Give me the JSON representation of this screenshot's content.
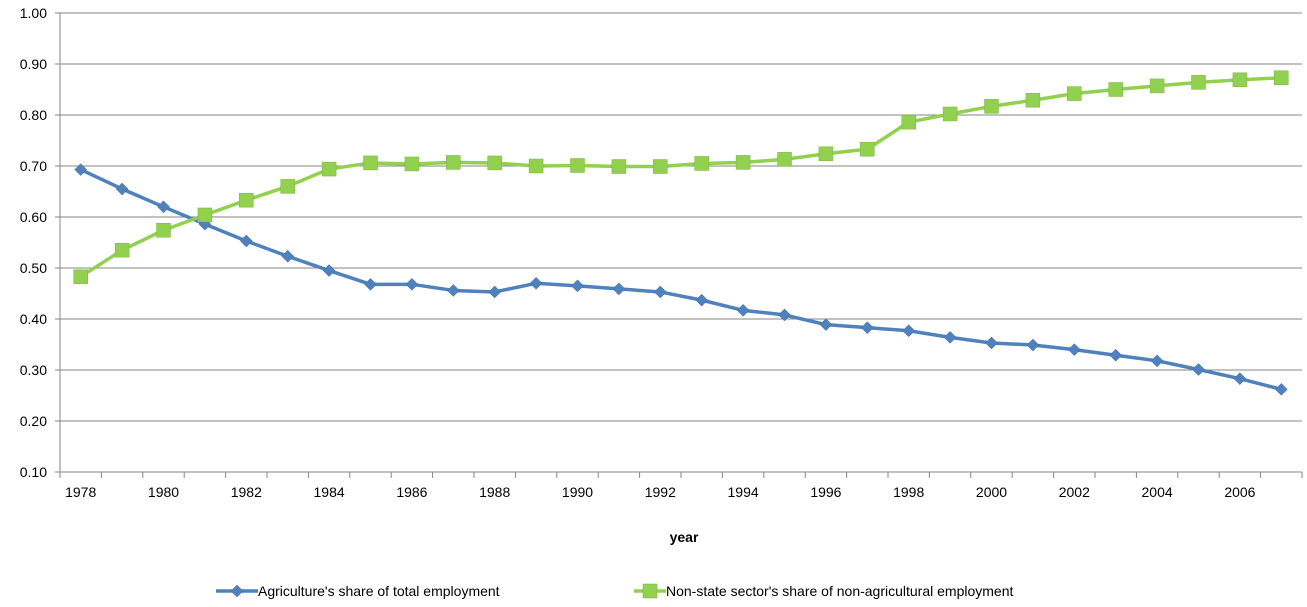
{
  "chart_data": {
    "type": "line",
    "title": "",
    "xlabel": "year",
    "ylabel": "",
    "ylim": [
      0.1,
      1.0
    ],
    "yticks": [
      "0.10",
      "0.20",
      "0.30",
      "0.40",
      "0.50",
      "0.60",
      "0.70",
      "0.80",
      "0.90",
      "1.00"
    ],
    "xtick_labels": [
      "1978",
      "1980",
      "1982",
      "1984",
      "1986",
      "1988",
      "1990",
      "1992",
      "1994",
      "1996",
      "1998",
      "2000",
      "2002",
      "2004",
      "2006"
    ],
    "grid": true,
    "legend_position": "bottom",
    "x": [
      1978,
      1979,
      1980,
      1981,
      1982,
      1983,
      1984,
      1985,
      1986,
      1987,
      1988,
      1989,
      1990,
      1991,
      1992,
      1993,
      1994,
      1995,
      1996,
      1997,
      1998,
      1999,
      2000,
      2001,
      2002,
      2003,
      2004,
      2005,
      2006,
      2007
    ],
    "series": [
      {
        "name": "Agriculture's share of total employment",
        "color": "#4f81bd",
        "marker": "diamond",
        "values": [
          0.693,
          0.655,
          0.62,
          0.586,
          0.553,
          0.523,
          0.495,
          0.468,
          0.468,
          0.456,
          0.453,
          0.47,
          0.465,
          0.459,
          0.453,
          0.437,
          0.417,
          0.408,
          0.389,
          0.383,
          0.377,
          0.364,
          0.353,
          0.349,
          0.34,
          0.329,
          0.318,
          0.301,
          0.283,
          0.262
        ]
      },
      {
        "name": "Non-state sector's share of non-agricultural employment",
        "color": "#92d050",
        "marker": "square",
        "values": [
          0.483,
          0.535,
          0.574,
          0.604,
          0.633,
          0.66,
          0.694,
          0.706,
          0.704,
          0.707,
          0.706,
          0.7,
          0.701,
          0.699,
          0.699,
          0.705,
          0.707,
          0.713,
          0.724,
          0.733,
          0.786,
          0.802,
          0.817,
          0.829,
          0.842,
          0.85,
          0.857,
          0.864,
          0.869,
          0.873
        ]
      }
    ]
  }
}
